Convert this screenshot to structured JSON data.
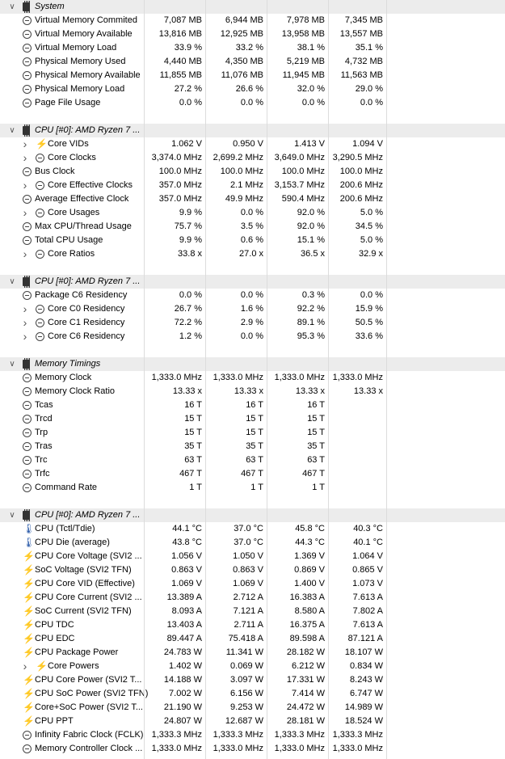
{
  "sections": [
    {
      "title": "System",
      "icon": "chip-icon",
      "rows": [
        {
          "icon": "clock-icon",
          "expand": false,
          "label": "Virtual Memory Commited",
          "v": [
            "7,087 MB",
            "6,944 MB",
            "7,978 MB",
            "7,345 MB"
          ]
        },
        {
          "icon": "clock-icon",
          "expand": false,
          "label": "Virtual Memory Available",
          "v": [
            "13,816 MB",
            "12,925 MB",
            "13,958 MB",
            "13,557 MB"
          ]
        },
        {
          "icon": "clock-icon",
          "expand": false,
          "label": "Virtual Memory Load",
          "v": [
            "33.9 %",
            "33.2 %",
            "38.1 %",
            "35.1 %"
          ]
        },
        {
          "icon": "clock-icon",
          "expand": false,
          "label": "Physical Memory Used",
          "v": [
            "4,440 MB",
            "4,350 MB",
            "5,219 MB",
            "4,732 MB"
          ]
        },
        {
          "icon": "clock-icon",
          "expand": false,
          "label": "Physical Memory Available",
          "v": [
            "11,855 MB",
            "11,076 MB",
            "11,945 MB",
            "11,563 MB"
          ]
        },
        {
          "icon": "clock-icon",
          "expand": false,
          "label": "Physical Memory Load",
          "v": [
            "27.2 %",
            "26.6 %",
            "32.0 %",
            "29.0 %"
          ]
        },
        {
          "icon": "clock-icon",
          "expand": false,
          "label": "Page File Usage",
          "v": [
            "0.0 %",
            "0.0 %",
            "0.0 %",
            "0.0 %"
          ]
        }
      ]
    },
    {
      "title": "CPU [#0]: AMD Ryzen 7 ...",
      "icon": "chip-icon",
      "rows": [
        {
          "icon": "bolt-icon",
          "expand": true,
          "label": "Core VIDs",
          "v": [
            "1.062 V",
            "0.950 V",
            "1.413 V",
            "1.094 V"
          ]
        },
        {
          "icon": "clock-icon",
          "expand": true,
          "label": "Core Clocks",
          "v": [
            "3,374.0 MHz",
            "2,699.2 MHz",
            "3,649.0 MHz",
            "3,290.5 MHz"
          ]
        },
        {
          "icon": "clock-icon",
          "expand": false,
          "label": "Bus Clock",
          "v": [
            "100.0 MHz",
            "100.0 MHz",
            "100.0 MHz",
            "100.0 MHz"
          ]
        },
        {
          "icon": "clock-icon",
          "expand": true,
          "label": "Core Effective Clocks",
          "v": [
            "357.0 MHz",
            "2.1 MHz",
            "3,153.7 MHz",
            "200.6 MHz"
          ]
        },
        {
          "icon": "clock-icon",
          "expand": false,
          "label": "Average Effective Clock",
          "v": [
            "357.0 MHz",
            "49.9 MHz",
            "590.4 MHz",
            "200.6 MHz"
          ]
        },
        {
          "icon": "clock-icon",
          "expand": true,
          "label": "Core Usages",
          "v": [
            "9.9 %",
            "0.0 %",
            "92.0 %",
            "5.0 %"
          ]
        },
        {
          "icon": "clock-icon",
          "expand": false,
          "label": "Max CPU/Thread Usage",
          "v": [
            "75.7 %",
            "3.5 %",
            "92.0 %",
            "34.5 %"
          ]
        },
        {
          "icon": "clock-icon",
          "expand": false,
          "label": "Total CPU Usage",
          "v": [
            "9.9 %",
            "0.6 %",
            "15.1 %",
            "5.0 %"
          ]
        },
        {
          "icon": "clock-icon",
          "expand": true,
          "label": "Core Ratios",
          "v": [
            "33.8 x",
            "27.0 x",
            "36.5 x",
            "32.9 x"
          ]
        }
      ]
    },
    {
      "title": "CPU [#0]: AMD Ryzen 7 ...",
      "icon": "chip-icon",
      "rows": [
        {
          "icon": "clock-icon",
          "expand": false,
          "label": "Package C6 Residency",
          "v": [
            "0.0 %",
            "0.0 %",
            "0.3 %",
            "0.0 %"
          ]
        },
        {
          "icon": "clock-icon",
          "expand": true,
          "label": "Core C0 Residency",
          "v": [
            "26.7 %",
            "1.6 %",
            "92.2 %",
            "15.9 %"
          ]
        },
        {
          "icon": "clock-icon",
          "expand": true,
          "label": "Core C1 Residency",
          "v": [
            "72.2 %",
            "2.9 %",
            "89.1 %",
            "50.5 %"
          ]
        },
        {
          "icon": "clock-icon",
          "expand": true,
          "label": "Core C6 Residency",
          "v": [
            "1.2 %",
            "0.0 %",
            "95.3 %",
            "33.6 %"
          ]
        }
      ]
    },
    {
      "title": "Memory Timings",
      "icon": "chip-icon",
      "rows": [
        {
          "icon": "clock-icon",
          "expand": false,
          "label": "Memory Clock",
          "v": [
            "1,333.0 MHz",
            "1,333.0 MHz",
            "1,333.0 MHz",
            "1,333.0 MHz"
          ]
        },
        {
          "icon": "clock-icon",
          "expand": false,
          "label": "Memory Clock Ratio",
          "v": [
            "13.33 x",
            "13.33 x",
            "13.33 x",
            "13.33 x"
          ]
        },
        {
          "icon": "clock-icon",
          "expand": false,
          "label": "Tcas",
          "v": [
            "16 T",
            "16 T",
            "16 T",
            ""
          ]
        },
        {
          "icon": "clock-icon",
          "expand": false,
          "label": "Trcd",
          "v": [
            "15 T",
            "15 T",
            "15 T",
            ""
          ]
        },
        {
          "icon": "clock-icon",
          "expand": false,
          "label": "Trp",
          "v": [
            "15 T",
            "15 T",
            "15 T",
            ""
          ]
        },
        {
          "icon": "clock-icon",
          "expand": false,
          "label": "Tras",
          "v": [
            "35 T",
            "35 T",
            "35 T",
            ""
          ]
        },
        {
          "icon": "clock-icon",
          "expand": false,
          "label": "Trc",
          "v": [
            "63 T",
            "63 T",
            "63 T",
            ""
          ]
        },
        {
          "icon": "clock-icon",
          "expand": false,
          "label": "Trfc",
          "v": [
            "467 T",
            "467 T",
            "467 T",
            ""
          ]
        },
        {
          "icon": "clock-icon",
          "expand": false,
          "label": "Command Rate",
          "v": [
            "1 T",
            "1 T",
            "1 T",
            ""
          ]
        }
      ]
    },
    {
      "title": "CPU [#0]: AMD Ryzen 7 ...",
      "icon": "chip-icon",
      "rows": [
        {
          "icon": "thermometer-icon",
          "expand": false,
          "label": "CPU (Tctl/Tdie)",
          "v": [
            "44.1 °C",
            "37.0 °C",
            "45.8 °C",
            "40.3 °C"
          ]
        },
        {
          "icon": "thermometer-icon",
          "expand": false,
          "label": "CPU Die (average)",
          "v": [
            "43.8 °C",
            "37.0 °C",
            "44.3 °C",
            "40.1 °C"
          ]
        },
        {
          "icon": "bolt-icon",
          "expand": false,
          "label": "CPU Core Voltage (SVI2 ...",
          "v": [
            "1.056 V",
            "1.050 V",
            "1.369 V",
            "1.064 V"
          ]
        },
        {
          "icon": "bolt-icon",
          "expand": false,
          "label": "SoC Voltage (SVI2 TFN)",
          "v": [
            "0.863 V",
            "0.863 V",
            "0.869 V",
            "0.865 V"
          ]
        },
        {
          "icon": "bolt-icon",
          "expand": false,
          "label": "CPU Core VID (Effective)",
          "v": [
            "1.069 V",
            "1.069 V",
            "1.400 V",
            "1.073 V"
          ]
        },
        {
          "icon": "bolt-icon",
          "expand": false,
          "label": "CPU Core Current (SVI2 ...",
          "v": [
            "13.389 A",
            "2.712 A",
            "16.383 A",
            "7.613 A"
          ]
        },
        {
          "icon": "bolt-icon",
          "expand": false,
          "label": "SoC Current (SVI2 TFN)",
          "v": [
            "8.093 A",
            "7.121 A",
            "8.580 A",
            "7.802 A"
          ]
        },
        {
          "icon": "bolt-icon",
          "expand": false,
          "label": "CPU TDC",
          "v": [
            "13.403 A",
            "2.711 A",
            "16.375 A",
            "7.613 A"
          ]
        },
        {
          "icon": "bolt-icon",
          "expand": false,
          "label": "CPU EDC",
          "v": [
            "89.447 A",
            "75.418 A",
            "89.598 A",
            "87.121 A"
          ]
        },
        {
          "icon": "bolt-icon",
          "expand": false,
          "label": "CPU Package Power",
          "v": [
            "24.783 W",
            "11.341 W",
            "28.182 W",
            "18.107 W"
          ]
        },
        {
          "icon": "bolt-icon",
          "expand": true,
          "label": "Core Powers",
          "v": [
            "1.402 W",
            "0.069 W",
            "6.212 W",
            "0.834 W"
          ]
        },
        {
          "icon": "bolt-icon",
          "expand": false,
          "label": "CPU Core Power (SVI2 T...",
          "v": [
            "14.188 W",
            "3.097 W",
            "17.331 W",
            "8.243 W"
          ]
        },
        {
          "icon": "bolt-icon",
          "expand": false,
          "label": "CPU SoC Power (SVI2 TFN)",
          "v": [
            "7.002 W",
            "6.156 W",
            "7.414 W",
            "6.747 W"
          ]
        },
        {
          "icon": "bolt-icon",
          "expand": false,
          "label": "Core+SoC Power (SVI2 T...",
          "v": [
            "21.190 W",
            "9.253 W",
            "24.472 W",
            "14.989 W"
          ]
        },
        {
          "icon": "bolt-icon",
          "expand": false,
          "label": "CPU PPT",
          "v": [
            "24.807 W",
            "12.687 W",
            "28.181 W",
            "18.524 W"
          ]
        },
        {
          "icon": "clock-icon",
          "expand": false,
          "label": "Infinity Fabric Clock (FCLK)",
          "v": [
            "1,333.3 MHz",
            "1,333.3 MHz",
            "1,333.3 MHz",
            "1,333.3 MHz"
          ]
        },
        {
          "icon": "clock-icon",
          "expand": false,
          "label": "Memory Controller Clock ...",
          "v": [
            "1,333.0 MHz",
            "1,333.0 MHz",
            "1,333.0 MHz",
            "1,333.0 MHz"
          ]
        }
      ]
    }
  ],
  "colors": {
    "header_bg": "#ececec",
    "grid": "#dcdcdc",
    "bolt": "#e8b400",
    "thermometer": "#2a5aa8"
  }
}
